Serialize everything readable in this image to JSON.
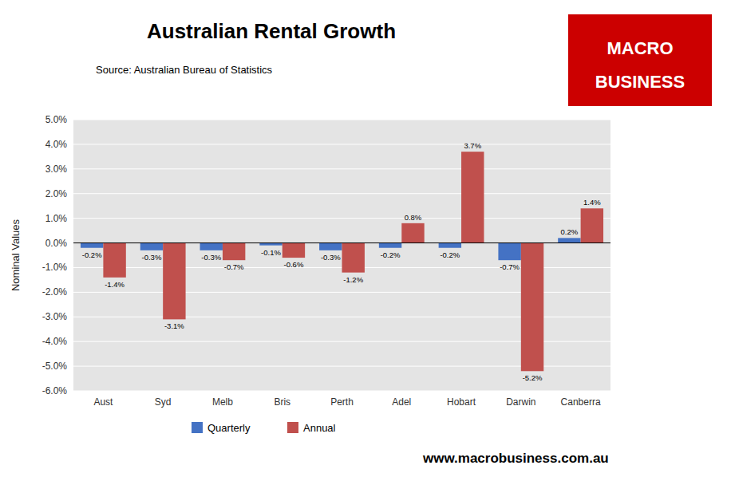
{
  "chart_data": {
    "type": "bar",
    "title": "Australian Rental Growth",
    "subtitle": "Source: Australian Bureau of Statistics",
    "ylabel": "Nominal Values",
    "annotations": [
      "www.macrobusiness.com.au",
      "MACRO",
      "BUSINESS"
    ],
    "categories": [
      "Aust",
      "Syd",
      "Melb",
      "Bris",
      "Perth",
      "Adel",
      "Hobart",
      "Darwin",
      "Canberra"
    ],
    "series": [
      {
        "name": "Quarterly",
        "color": "#4472C4",
        "values": [
          -0.2,
          -0.3,
          -0.3,
          -0.1,
          -0.3,
          -0.2,
          -0.2,
          -0.7,
          0.2
        ],
        "value_labels": [
          "-0.2%",
          "-0.3%",
          "-0.3%",
          "-0.1%",
          "-0.3%",
          "-0.2%",
          "-0.2%",
          "-0.7%",
          "0.2%"
        ]
      },
      {
        "name": "Annual",
        "color": "#C0504D",
        "values": [
          -1.4,
          -3.1,
          -0.7,
          -0.6,
          -1.2,
          0.8,
          3.7,
          -5.2,
          1.4
        ],
        "value_labels": [
          "-1.4%",
          "-3.1%",
          "-0.7%",
          "-0.6%",
          "-1.2%",
          "0.8%",
          "3.7%",
          "-5.2%",
          "1.4%"
        ]
      }
    ],
    "ylim": [
      -6.0,
      5.0
    ],
    "yticks": [
      {
        "value": -6.0,
        "label": "-6.0%"
      },
      {
        "value": -5.0,
        "label": "-5.0%"
      },
      {
        "value": -4.0,
        "label": "-4.0%"
      },
      {
        "value": -3.0,
        "label": "-3.0%"
      },
      {
        "value": -2.0,
        "label": "-2.0%"
      },
      {
        "value": -1.0,
        "label": "-1.0%"
      },
      {
        "value": 0.0,
        "label": "0.0%"
      },
      {
        "value": 1.0,
        "label": "1.0%"
      },
      {
        "value": 2.0,
        "label": "2.0%"
      },
      {
        "value": 3.0,
        "label": "3.0%"
      },
      {
        "value": 4.0,
        "label": "4.0%"
      },
      {
        "value": 5.0,
        "label": "5.0%"
      }
    ],
    "grid": true,
    "legend": "bottom",
    "data_labels": true
  }
}
